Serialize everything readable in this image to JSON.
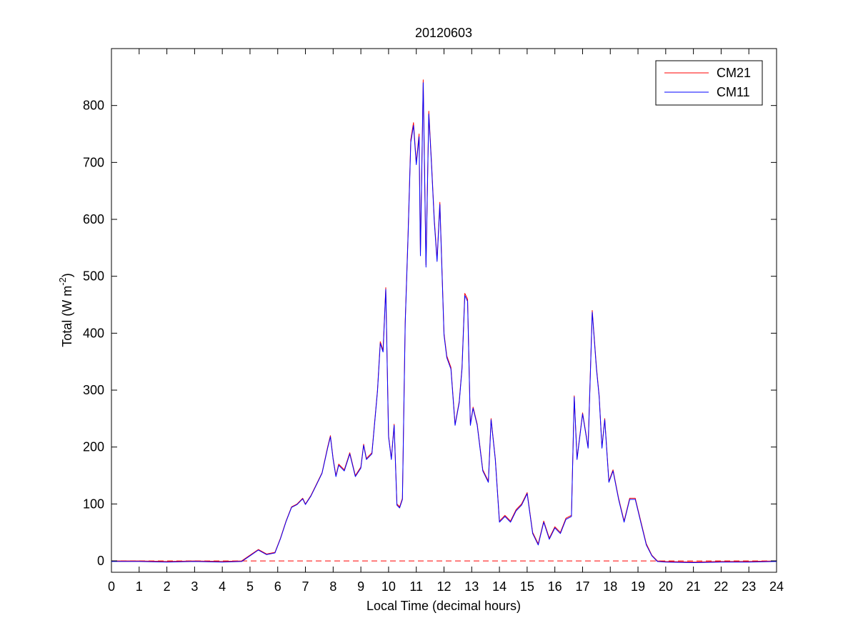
{
  "chart_data": {
    "type": "line",
    "title": "20120603",
    "xlabel": "Local Time (decimal hours)",
    "ylabel": {
      "text": "Total (W m",
      "superscript": "-2",
      "suffix": ")"
    },
    "xlim": [
      0,
      24
    ],
    "ylim": [
      -20,
      900
    ],
    "xticks": [
      "0",
      "1",
      "2",
      "3",
      "4",
      "5",
      "6",
      "7",
      "8",
      "9",
      "10",
      "11",
      "12",
      "13",
      "14",
      "15",
      "16",
      "17",
      "18",
      "19",
      "20",
      "21",
      "22",
      "23",
      "24"
    ],
    "yticks": [
      "0",
      "100",
      "200",
      "300",
      "400",
      "500",
      "600",
      "700",
      "800"
    ],
    "grid": false,
    "legend_position": "top-right",
    "reference_line": {
      "y": 0,
      "style": "dashed",
      "color": "#ff0000"
    },
    "series": [
      {
        "name": "CM21",
        "color": "#ff0000",
        "x": [
          0,
          1,
          2,
          3,
          4,
          4.7,
          5.0,
          5.3,
          5.6,
          5.9,
          6.1,
          6.3,
          6.5,
          6.7,
          6.9,
          7.0,
          7.2,
          7.4,
          7.6,
          7.8,
          7.9,
          8.0,
          8.1,
          8.2,
          8.4,
          8.6,
          8.8,
          9.0,
          9.1,
          9.2,
          9.4,
          9.6,
          9.7,
          9.8,
          9.9,
          10.0,
          10.1,
          10.2,
          10.3,
          10.4,
          10.5,
          10.6,
          10.7,
          10.8,
          10.9,
          11.0,
          11.1,
          11.15,
          11.25,
          11.35,
          11.45,
          11.55,
          11.65,
          11.75,
          11.85,
          12.0,
          12.1,
          12.25,
          12.4,
          12.55,
          12.65,
          12.75,
          12.85,
          12.95,
          13.05,
          13.2,
          13.4,
          13.6,
          13.7,
          13.85,
          14.0,
          14.2,
          14.4,
          14.6,
          14.8,
          15.0,
          15.2,
          15.4,
          15.6,
          15.8,
          16.0,
          16.2,
          16.4,
          16.6,
          16.7,
          16.8,
          17.0,
          17.2,
          17.35,
          17.5,
          17.6,
          17.7,
          17.8,
          17.95,
          18.1,
          18.3,
          18.5,
          18.7,
          18.9,
          19.1,
          19.3,
          19.5,
          19.7,
          20,
          21,
          22,
          23,
          24
        ],
        "y": [
          0,
          0,
          -1,
          0,
          -1,
          0,
          10,
          20,
          12,
          15,
          40,
          70,
          95,
          100,
          110,
          100,
          115,
          135,
          155,
          200,
          220,
          180,
          150,
          170,
          160,
          190,
          150,
          165,
          205,
          180,
          190,
          300,
          385,
          370,
          480,
          220,
          180,
          240,
          100,
          95,
          110,
          420,
          570,
          740,
          770,
          700,
          750,
          540,
          845,
          520,
          790,
          700,
          600,
          530,
          630,
          400,
          360,
          340,
          240,
          280,
          340,
          470,
          460,
          240,
          270,
          240,
          160,
          140,
          250,
          180,
          70,
          80,
          70,
          90,
          100,
          120,
          50,
          30,
          70,
          40,
          60,
          50,
          75,
          80,
          290,
          180,
          260,
          200,
          440,
          340,
          290,
          200,
          250,
          140,
          160,
          110,
          70,
          110,
          110,
          70,
          30,
          10,
          0,
          -1,
          -2,
          -1,
          -1,
          0
        ]
      },
      {
        "name": "CM11",
        "color": "#0000ff",
        "x": [
          0,
          1,
          2,
          3,
          4,
          4.7,
          5.0,
          5.3,
          5.6,
          5.9,
          6.1,
          6.3,
          6.5,
          6.7,
          6.9,
          7.0,
          7.2,
          7.4,
          7.6,
          7.8,
          7.9,
          8.0,
          8.1,
          8.2,
          8.4,
          8.6,
          8.8,
          9.0,
          9.1,
          9.2,
          9.4,
          9.6,
          9.7,
          9.8,
          9.9,
          10.0,
          10.1,
          10.2,
          10.3,
          10.4,
          10.5,
          10.6,
          10.7,
          10.8,
          10.9,
          11.0,
          11.1,
          11.15,
          11.25,
          11.35,
          11.45,
          11.55,
          11.65,
          11.75,
          11.85,
          12.0,
          12.1,
          12.25,
          12.4,
          12.55,
          12.65,
          12.75,
          12.85,
          12.95,
          13.05,
          13.2,
          13.4,
          13.6,
          13.7,
          13.85,
          14.0,
          14.2,
          14.4,
          14.6,
          14.8,
          15.0,
          15.2,
          15.4,
          15.6,
          15.8,
          16.0,
          16.2,
          16.4,
          16.6,
          16.7,
          16.8,
          17.0,
          17.2,
          17.35,
          17.5,
          17.6,
          17.7,
          17.8,
          17.95,
          18.1,
          18.3,
          18.5,
          18.7,
          18.9,
          19.1,
          19.3,
          19.5,
          19.7,
          20,
          21,
          22,
          23,
          24
        ],
        "y": [
          -1,
          -1,
          -2,
          -1,
          -2,
          -1,
          9,
          19,
          11,
          14,
          39,
          69,
          94,
          99,
          109,
          99,
          114,
          134,
          154,
          198,
          218,
          178,
          148,
          168,
          158,
          188,
          148,
          163,
          203,
          178,
          188,
          298,
          382,
          367,
          477,
          218,
          178,
          238,
          98,
          93,
          108,
          417,
          566,
          735,
          765,
          696,
          745,
          536,
          840,
          516,
          785,
          696,
          596,
          526,
          626,
          397,
          357,
          337,
          238,
          278,
          337,
          466,
          456,
          238,
          268,
          238,
          158,
          138,
          248,
          178,
          68,
          78,
          68,
          88,
          98,
          118,
          48,
          28,
          68,
          38,
          58,
          48,
          73,
          78,
          288,
          178,
          258,
          198,
          437,
          337,
          288,
          198,
          248,
          138,
          158,
          108,
          68,
          108,
          108,
          68,
          28,
          9,
          -1,
          -2,
          -3,
          -2,
          -2,
          -1
        ]
      }
    ]
  }
}
